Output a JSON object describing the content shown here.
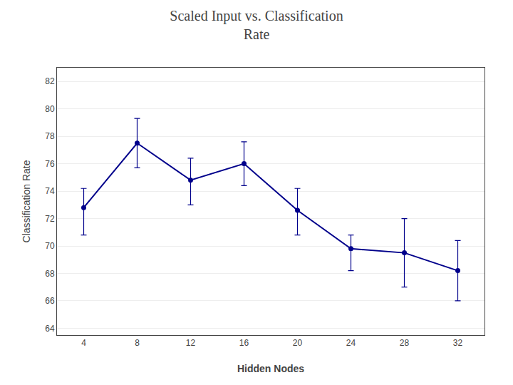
{
  "chart_data": {
    "type": "line",
    "title": "Scaled Input vs. Classification\nRate",
    "xlabel": "Hidden Nodes",
    "ylabel": "Classification Rate",
    "x": [
      4,
      8,
      12,
      16,
      20,
      24,
      28,
      32
    ],
    "values": [
      72.8,
      77.5,
      74.8,
      76.0,
      72.6,
      69.8,
      69.5,
      68.2
    ],
    "error_minus": [
      2.0,
      1.8,
      1.8,
      1.6,
      1.8,
      1.6,
      2.5,
      2.2
    ],
    "error_plus": [
      1.4,
      1.8,
      1.6,
      1.6,
      1.6,
      1.0,
      2.5,
      2.2
    ],
    "color": "#00008B",
    "marker": "circle",
    "line_style": "solid",
    "xlim": [
      2,
      34
    ],
    "xticks": [
      4,
      8,
      12,
      16,
      20,
      24,
      28,
      32
    ],
    "ylim": [
      63.5,
      83.0
    ],
    "yticks": [
      64,
      66,
      68,
      70,
      72,
      74,
      76,
      78,
      80,
      82
    ],
    "grid": "y"
  }
}
